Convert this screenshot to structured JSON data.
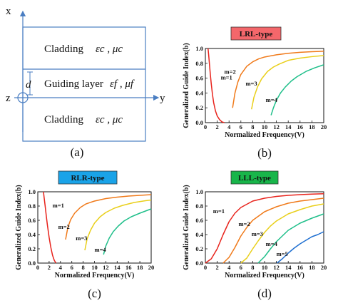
{
  "colors": {
    "m1": "#e8231c",
    "m2": "#f07a1a",
    "m3": "#e9cf1a",
    "m4": "#1fbf8a",
    "m5": "#1f6fd1",
    "lrl_badge": "#f4676b",
    "rlr_badge": "#1aa3e8",
    "lll_badge": "#18b54a",
    "schematic_line": "#4a7ec2"
  },
  "schematic": {
    "x_axis": "x",
    "y_axis": "y",
    "z_axis": "z",
    "thickness": "d",
    "top_cladding": {
      "text": "Cladding",
      "symbols": "εc , μc"
    },
    "guiding_layer": {
      "text": "Guiding layer",
      "symbols": "εf , μf"
    },
    "bottom_cladding": {
      "text": "Cladding",
      "symbols": "εc , μc"
    },
    "caption": "(a)"
  },
  "chart_data": [
    {
      "type": "line",
      "panel": "b",
      "badge": "LRL-type",
      "caption": "(b)",
      "xlabel": "Normalized Frequency(V)",
      "ylabel": "Generalized Guide Index(b)",
      "xlim": [
        0,
        20
      ],
      "ylim": [
        0,
        1.0
      ],
      "xticks": [
        "0",
        "2",
        "4",
        "6",
        "8",
        "10",
        "12",
        "14",
        "16",
        "18",
        "20"
      ],
      "yticks": [
        "0.0",
        "0.2",
        "0.4",
        "0.6",
        "0.8",
        "1.0"
      ],
      "series": [
        {
          "name": "m=1",
          "key": "m1",
          "x": [
            0.45,
            0.55,
            0.7,
            0.85,
            1.0,
            1.2,
            1.4,
            1.7,
            2.0,
            2.4,
            2.8,
            3.2
          ],
          "y": [
            1.0,
            0.92,
            0.78,
            0.64,
            0.52,
            0.38,
            0.27,
            0.16,
            0.09,
            0.04,
            0.01,
            0.0
          ]
        },
        {
          "name": "m=2",
          "key": "m2",
          "x": [
            4.6,
            5.0,
            5.5,
            6.0,
            7.0,
            8.0,
            9.0,
            10.0,
            12.0,
            14.0,
            16.0,
            18.0,
            20.0
          ],
          "y": [
            0.2,
            0.4,
            0.55,
            0.65,
            0.76,
            0.82,
            0.86,
            0.885,
            0.915,
            0.935,
            0.948,
            0.957,
            0.963
          ]
        },
        {
          "name": "m=3",
          "key": "m3",
          "x": [
            7.8,
            8.2,
            8.8,
            9.5,
            10.5,
            11.5,
            12.5,
            14.0,
            16.0,
            18.0,
            20.0
          ],
          "y": [
            0.18,
            0.34,
            0.48,
            0.59,
            0.69,
            0.75,
            0.79,
            0.84,
            0.87,
            0.89,
            0.905
          ]
        },
        {
          "name": "m=4",
          "key": "m4",
          "x": [
            11.1,
            11.5,
            12.0,
            12.7,
            13.5,
            14.5,
            15.5,
            17.0,
            18.5,
            20.0
          ],
          "y": [
            0.1,
            0.2,
            0.3,
            0.4,
            0.48,
            0.56,
            0.62,
            0.69,
            0.74,
            0.78
          ]
        }
      ],
      "annotations": [
        {
          "text": "m=1",
          "x": 2.6,
          "y": 0.58
        },
        {
          "text": "m=2",
          "x": 3.2,
          "y": 0.66
        },
        {
          "text": "m=3",
          "x": 6.8,
          "y": 0.5
        },
        {
          "text": "m=4",
          "x": 10.2,
          "y": 0.28
        }
      ]
    },
    {
      "type": "line",
      "panel": "c",
      "badge": "RLR-type",
      "caption": "(c)",
      "xlabel": "Normalized Frequency(V)",
      "ylabel": "Generalized Guide Index(b)",
      "xlim": [
        0,
        20
      ],
      "ylim": [
        0,
        1.0
      ],
      "xticks": [
        "0",
        "2",
        "4",
        "6",
        "8",
        "10",
        "12",
        "14",
        "16",
        "18",
        "20"
      ],
      "yticks": [
        "0.0",
        "0.2",
        "0.4",
        "0.6",
        "0.8",
        "1.0"
      ],
      "series": [
        {
          "name": "m=1",
          "key": "m1",
          "x": [
            1.0,
            1.1,
            1.3,
            1.5,
            1.7,
            2.0,
            2.3,
            2.6,
            2.9,
            3.2
          ],
          "y": [
            1.0,
            0.93,
            0.8,
            0.66,
            0.53,
            0.36,
            0.22,
            0.11,
            0.04,
            0.0
          ]
        },
        {
          "name": "m=2",
          "key": "m2",
          "x": [
            4.9,
            5.3,
            5.8,
            6.5,
            7.5,
            8.5,
            10.0,
            12.0,
            14.0,
            16.0,
            18.0,
            20.0
          ],
          "y": [
            0.33,
            0.5,
            0.61,
            0.7,
            0.78,
            0.83,
            0.87,
            0.905,
            0.925,
            0.94,
            0.95,
            0.96
          ]
        },
        {
          "name": "m=3",
          "key": "m3",
          "x": [
            8.3,
            8.7,
            9.3,
            10.0,
            11.0,
            12.0,
            13.5,
            15.0,
            17.0,
            19.0,
            20.0
          ],
          "y": [
            0.18,
            0.34,
            0.46,
            0.56,
            0.65,
            0.71,
            0.77,
            0.81,
            0.85,
            0.875,
            0.885
          ]
        },
        {
          "name": "m=4",
          "key": "m4",
          "x": [
            11.6,
            12.0,
            12.6,
            13.3,
            14.2,
            15.2,
            16.5,
            18.0,
            20.0
          ],
          "y": [
            0.12,
            0.24,
            0.35,
            0.44,
            0.52,
            0.59,
            0.65,
            0.7,
            0.76
          ]
        }
      ],
      "annotations": [
        {
          "text": "m=1",
          "x": 2.6,
          "y": 0.78
        },
        {
          "text": "m=2",
          "x": 3.6,
          "y": 0.48
        },
        {
          "text": "m=3",
          "x": 6.7,
          "y": 0.32
        },
        {
          "text": "m=4",
          "x": 10.0,
          "y": 0.16
        }
      ]
    },
    {
      "type": "line",
      "panel": "d",
      "badge": "LLL-type",
      "caption": "(d)",
      "xlabel": "Normalized Frequency(V)",
      "ylabel": "Generalized Guide Index(b)",
      "xlim": [
        0,
        20
      ],
      "ylim": [
        0,
        1.0
      ],
      "xticks": [
        "0",
        "2",
        "4",
        "6",
        "8",
        "10",
        "12",
        "14",
        "16",
        "18",
        "20"
      ],
      "yticks": [
        "0.0",
        "0.2",
        "0.4",
        "0.6",
        "0.8",
        "1.0"
      ],
      "series": [
        {
          "name": "m=1",
          "key": "m1",
          "x": [
            0.0,
            1.0,
            2.0,
            3.0,
            4.0,
            5.0,
            6.0,
            8.0,
            10.0,
            12.0,
            14.0,
            16.0,
            18.0,
            20.0
          ],
          "y": [
            0.0,
            0.06,
            0.2,
            0.4,
            0.58,
            0.7,
            0.78,
            0.87,
            0.91,
            0.935,
            0.95,
            0.96,
            0.967,
            0.972
          ]
        },
        {
          "name": "m=2",
          "key": "m2",
          "x": [
            3.0,
            4.0,
            5.0,
            6.0,
            7.0,
            8.0,
            10.0,
            12.0,
            14.0,
            16.0,
            18.0,
            20.0
          ],
          "y": [
            0.0,
            0.08,
            0.22,
            0.38,
            0.5,
            0.6,
            0.72,
            0.79,
            0.84,
            0.87,
            0.89,
            0.91
          ]
        },
        {
          "name": "m=3",
          "key": "m3",
          "x": [
            6.0,
            7.0,
            8.0,
            9.0,
            10.0,
            11.0,
            12.0,
            14.0,
            16.0,
            18.0,
            20.0
          ],
          "y": [
            0.0,
            0.07,
            0.2,
            0.32,
            0.43,
            0.52,
            0.59,
            0.69,
            0.75,
            0.8,
            0.83
          ]
        },
        {
          "name": "m=4",
          "key": "m4",
          "x": [
            8.9,
            10.0,
            11.0,
            12.0,
            13.0,
            14.0,
            16.0,
            18.0,
            20.0
          ],
          "y": [
            0.0,
            0.09,
            0.2,
            0.3,
            0.38,
            0.46,
            0.56,
            0.63,
            0.69
          ]
        },
        {
          "name": "m=5",
          "key": "m5",
          "x": [
            12.1,
            13.0,
            14.0,
            15.0,
            16.0,
            17.0,
            18.0,
            19.0,
            20.0
          ],
          "y": [
            0.0,
            0.06,
            0.14,
            0.21,
            0.27,
            0.32,
            0.37,
            0.4,
            0.44
          ]
        }
      ],
      "annotations": [
        {
          "text": "m=1",
          "x": 1.3,
          "y": 0.7
        },
        {
          "text": "m=2",
          "x": 5.6,
          "y": 0.52
        },
        {
          "text": "m=3",
          "x": 7.8,
          "y": 0.38
        },
        {
          "text": "m=4",
          "x": 10.2,
          "y": 0.24
        },
        {
          "text": "m=5",
          "x": 12.0,
          "y": 0.1
        }
      ]
    }
  ]
}
